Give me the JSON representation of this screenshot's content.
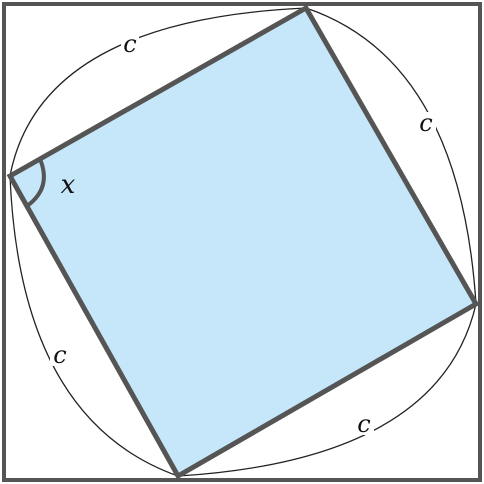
{
  "diagram": {
    "side_labels": [
      "c",
      "c",
      "c",
      "c"
    ],
    "angle_label": "x",
    "colors": {
      "square_fill": "#c6e7f9",
      "stroke": "#555555",
      "arc": "#222222",
      "frame": "#555555"
    }
  }
}
